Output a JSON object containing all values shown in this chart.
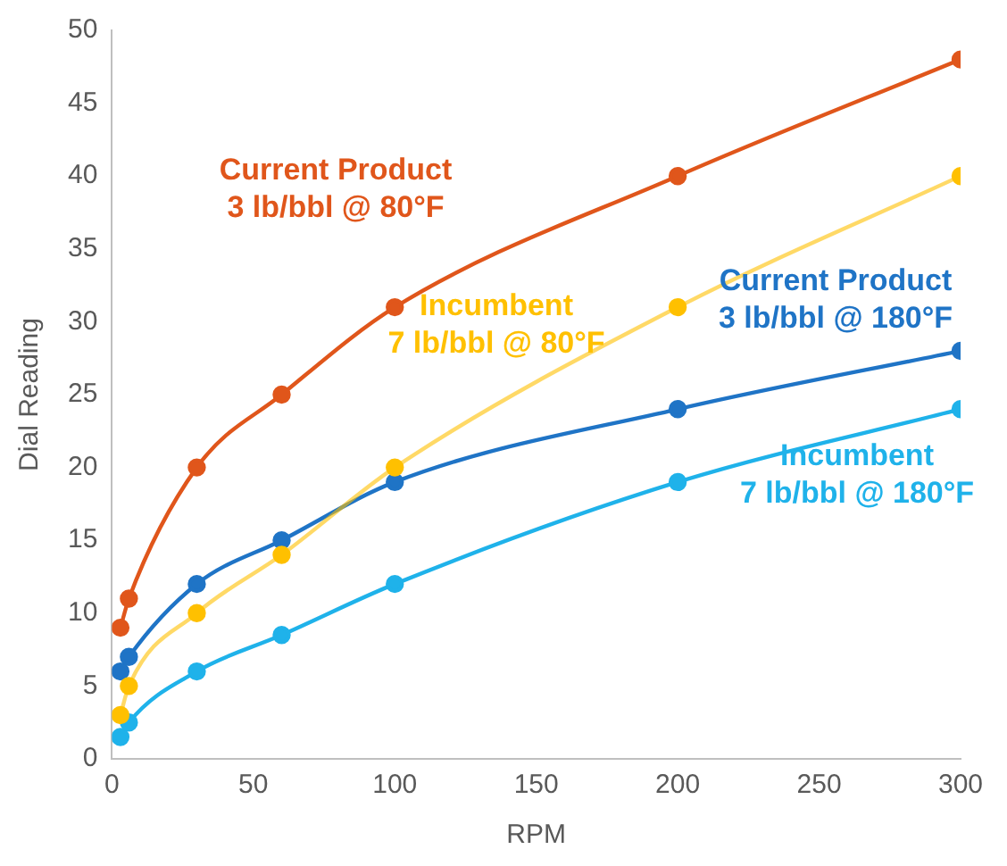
{
  "chart_data": {
    "type": "line",
    "xlabel": "RPM",
    "ylabel": "Dial Reading",
    "x": [
      3,
      6,
      30,
      60,
      100,
      200,
      300
    ],
    "xlim": [
      0,
      300
    ],
    "xticks": [
      0,
      50,
      100,
      150,
      200,
      250,
      300
    ],
    "ylim": [
      0,
      50
    ],
    "yticks": [
      0,
      5,
      10,
      15,
      20,
      25,
      30,
      35,
      40,
      45,
      50
    ],
    "grid": false,
    "legend": false,
    "marker": "circle",
    "line_style": "solid",
    "series": [
      {
        "name": "Current Product\n3 lb/bbl @ 80°F",
        "color": "#e0561b",
        "values": [
          9,
          11,
          20,
          25,
          31,
          40,
          48
        ]
      },
      {
        "name": "Incumbent\n7 lb/bbl @ 80°F",
        "color": "#ffc000",
        "values": [
          3,
          5,
          10,
          14,
          20,
          31,
          40
        ]
      },
      {
        "name": "Current Product\n3 lb/bbl @ 180°F",
        "color": "#1f74c6",
        "values": [
          6,
          7,
          12,
          15,
          19,
          24,
          28
        ]
      },
      {
        "name": "Incumbent\n7 lb/bbl @ 180°F",
        "color": "#1fb2ea",
        "values": [
          1.5,
          2.5,
          6,
          8.5,
          12,
          19,
          24
        ]
      }
    ]
  }
}
